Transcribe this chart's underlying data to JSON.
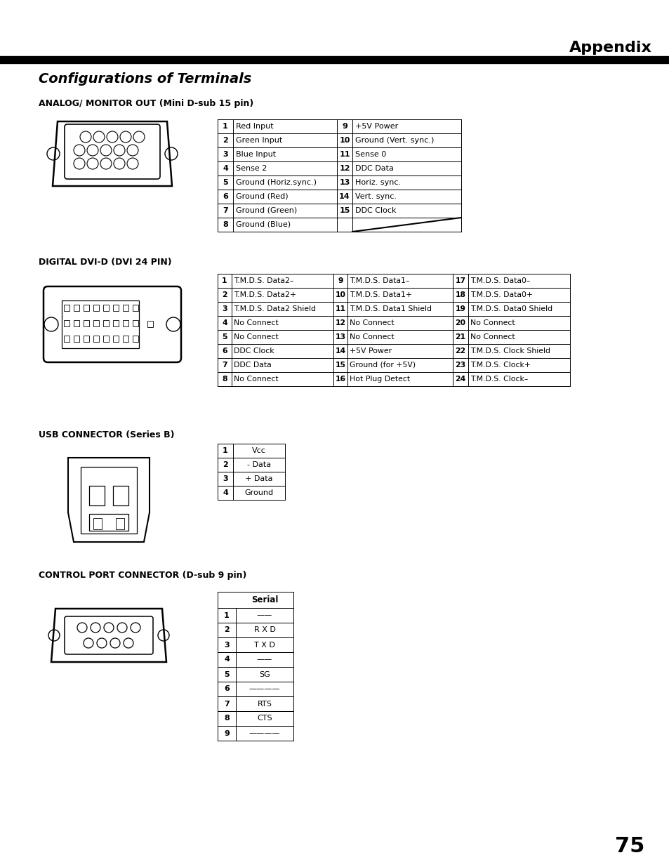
{
  "page_title": "Appendix",
  "main_title": "Configurations of Terminals",
  "bg_color": "#ffffff",
  "text_color": "#000000",
  "page_number": "75",
  "section1_title": "ANALOG/ MONITOR OUT (Mini D-sub 15 pin)",
  "analog_table": [
    [
      "1",
      "Red Input",
      "9",
      "+5V Power"
    ],
    [
      "2",
      "Green Input",
      "10",
      "Ground (Vert. sync.)"
    ],
    [
      "3",
      "Blue Input",
      "11",
      "Sense 0"
    ],
    [
      "4",
      "Sense 2",
      "12",
      "DDC Data"
    ],
    [
      "5",
      "Ground (Horiz.sync.)",
      "13",
      "Horiz. sync."
    ],
    [
      "6",
      "Ground (Red)",
      "14",
      "Vert. sync."
    ],
    [
      "7",
      "Ground (Green)",
      "15",
      "DDC Clock"
    ],
    [
      "8",
      "Ground (Blue)",
      "",
      ""
    ]
  ],
  "section2_title": "DIGITAL DVI-D (DVI 24 PIN)",
  "dvi_table": [
    [
      "1",
      "T.M.D.S. Data2–",
      "9",
      "T.M.D.S. Data1–",
      "17",
      "T.M.D.S. Data0–"
    ],
    [
      "2",
      "T.M.D.S. Data2+",
      "10",
      "T.M.D.S. Data1+",
      "18",
      "T.M.D.S. Data0+"
    ],
    [
      "3",
      "T.M.D.S. Data2 Shield",
      "11",
      "T.M.D.S. Data1 Shield",
      "19",
      "T.M.D.S. Data0 Shield"
    ],
    [
      "4",
      "No Connect",
      "12",
      "No Connect",
      "20",
      "No Connect"
    ],
    [
      "5",
      "No Connect",
      "13",
      "No Connect",
      "21",
      "No Connect"
    ],
    [
      "6",
      "DDC Clock",
      "14",
      "+5V Power",
      "22",
      "T.M.D.S. Clock Shield"
    ],
    [
      "7",
      "DDC Data",
      "15",
      "Ground (for +5V)",
      "23",
      "T.M.D.S. Clock+"
    ],
    [
      "8",
      "No Connect",
      "16",
      "Hot Plug Detect",
      "24",
      "T.M.D.S. Clock–"
    ]
  ],
  "section3_title": "USB CONNECTOR (Series B)",
  "usb_table": [
    [
      "1",
      "Vcc"
    ],
    [
      "2",
      "- Data"
    ],
    [
      "3",
      "+ Data"
    ],
    [
      "4",
      "Ground"
    ]
  ],
  "section4_title": "CONTROL PORT CONNECTOR (D-sub 9 pin)",
  "control_table_header": "Serial",
  "control_table": [
    [
      "1",
      "——"
    ],
    [
      "2",
      "R X D"
    ],
    [
      "3",
      "T X D"
    ],
    [
      "4",
      "——"
    ],
    [
      "5",
      "SG"
    ],
    [
      "6",
      "————"
    ],
    [
      "7",
      "RTS"
    ],
    [
      "8",
      "CTS"
    ],
    [
      "9",
      "————"
    ]
  ]
}
